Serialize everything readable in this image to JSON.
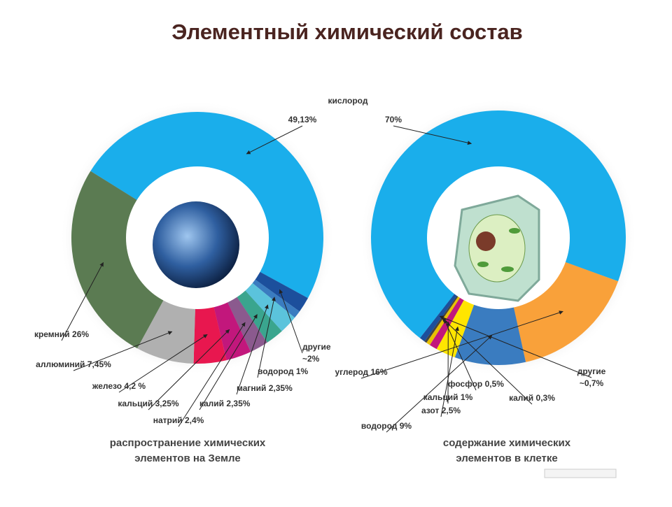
{
  "title": "Элементный химический состав",
  "annotation": "кислород",
  "chart_data": [
    {
      "type": "donut",
      "categories": [
        null,
        "другие",
        "водород",
        "магний",
        "калий",
        "натрий",
        "кальций",
        "железо",
        "аллюминий",
        "кремний"
      ],
      "values": [
        49.13,
        2,
        1,
        2.35,
        2.35,
        2.4,
        3.25,
        4.2,
        7.45,
        26
      ],
      "value_labels": [
        "49,13%",
        "~2%",
        "1%",
        "2,35%",
        "2,35%",
        "2,4%",
        "3,25%",
        "4,2 %",
        "7,45%",
        "26%"
      ],
      "colors": [
        "#1aaeeb",
        "#1c4f9c",
        "#3a7cc0",
        "#5bc3dc",
        "#3aa58e",
        "#8b5a8e",
        "#c2177c",
        "#e8174f",
        "#b0b0b0",
        "#5b7b52"
      ],
      "caption": [
        "распространение химических",
        "элементов на Земле"
      ]
    },
    {
      "type": "donut",
      "categories": [
        null,
        "углерод",
        "водород",
        "азот",
        "кальций",
        "фосфор",
        "калий",
        "другие"
      ],
      "values": [
        70,
        16,
        9,
        2.5,
        1,
        0.5,
        0.3,
        0.7
      ],
      "value_labels": [
        "70%",
        "16%",
        "9%",
        "2,5%",
        "1%",
        "0,5%",
        "0,3%",
        "~0,7%"
      ],
      "colors": [
        "#1aaeeb",
        "#f9a13a",
        "#3a7cc0",
        "#ffe500",
        "#c2177c",
        "#e8c000",
        "#444444",
        "#1c4f9c"
      ],
      "caption": [
        "содержание химических",
        "элементов в клетке"
      ]
    }
  ]
}
